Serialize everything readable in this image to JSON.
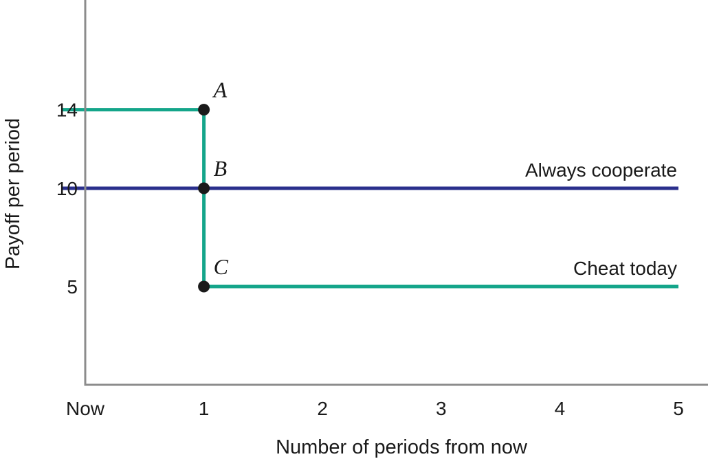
{
  "chart_data": {
    "type": "line",
    "xlabel": "Number of periods from now",
    "ylabel": "Payoff per period",
    "x_ticks": [
      {
        "x": 0,
        "label": "Now"
      },
      {
        "x": 1,
        "label": "1"
      },
      {
        "x": 2,
        "label": "2"
      },
      {
        "x": 3,
        "label": "3"
      },
      {
        "x": 4,
        "label": "4"
      },
      {
        "x": 5,
        "label": "5"
      }
    ],
    "y_ticks": [
      {
        "y": 14,
        "label": "14"
      },
      {
        "y": 10,
        "label": "10"
      },
      {
        "y": 5,
        "label": "5"
      }
    ],
    "xlim": [
      -0.2,
      5.2
    ],
    "ylim": [
      0,
      19.5
    ],
    "grid": false,
    "series": [
      {
        "name": "Always cooperate",
        "color": "#2a2f8c",
        "points": [
          [
            -0.2,
            10
          ],
          [
            5,
            10
          ]
        ]
      },
      {
        "name": "Cheat today",
        "color": "#14a58a",
        "points": [
          [
            -0.2,
            14
          ],
          [
            1,
            14
          ],
          [
            1,
            5
          ],
          [
            5,
            5
          ]
        ]
      }
    ],
    "points": [
      {
        "label": "A",
        "x": 1,
        "y": 14
      },
      {
        "label": "B",
        "x": 1,
        "y": 10
      },
      {
        "label": "C",
        "x": 1,
        "y": 5
      }
    ]
  }
}
